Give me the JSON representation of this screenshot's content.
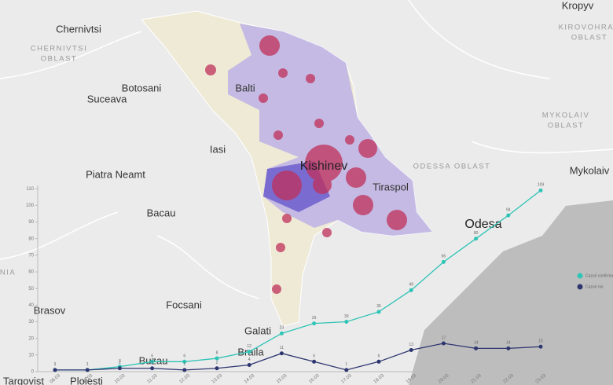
{
  "map": {
    "labels": [
      {
        "lines": [
          "Kropyv"
        ],
        "kind": "city"
      },
      {
        "lines": [
          "KIROVOHRAD",
          "OBLAST"
        ],
        "kind": "region"
      },
      {
        "lines": [
          "Chernivtsi"
        ],
        "kind": "city"
      },
      {
        "lines": [
          "CHERNIVTSI",
          "OBLAST"
        ],
        "kind": "region"
      },
      {
        "lines": [
          "Botosani"
        ],
        "kind": "city"
      },
      {
        "lines": [
          "Suceava"
        ],
        "kind": "city"
      },
      {
        "lines": [
          "Balti"
        ],
        "kind": "city"
      },
      {
        "lines": [
          "MYKOLAIV",
          "OBLAST"
        ],
        "kind": "region"
      },
      {
        "lines": [
          "Iasi"
        ],
        "kind": "city"
      },
      {
        "lines": [
          "Kishinev"
        ],
        "kind": "big"
      },
      {
        "lines": [
          "ODESSA OBLAST"
        ],
        "kind": "region"
      },
      {
        "lines": [
          "Mykolaiv"
        ],
        "kind": "city"
      },
      {
        "lines": [
          "Piatra Neamt"
        ],
        "kind": "city"
      },
      {
        "lines": [
          "Tiraspol"
        ],
        "kind": "city"
      },
      {
        "lines": [
          "Bacau"
        ],
        "kind": "city"
      },
      {
        "lines": [
          "Odesa"
        ],
        "kind": "big"
      },
      {
        "lines": [
          "NIA"
        ],
        "kind": "region"
      },
      {
        "lines": [
          "Focsani"
        ],
        "kind": "city"
      },
      {
        "lines": [
          "Brasov"
        ],
        "kind": "city"
      },
      {
        "lines": [
          "Galati"
        ],
        "kind": "city"
      },
      {
        "lines": [
          "Braila"
        ],
        "kind": "city"
      },
      {
        "lines": [
          "Buzau"
        ],
        "kind": "city"
      },
      {
        "lines": [
          "Targovist"
        ],
        "kind": "city"
      },
      {
        "lines": [
          "Ploiesti"
        ],
        "kind": "city"
      }
    ]
  },
  "chart_data": {
    "type": "line",
    "categories": [
      "08.03",
      "09.03",
      "10.03",
      "11.03",
      "12.03",
      "13.03",
      "14.03",
      "15.03",
      "16.03",
      "17.03",
      "18.03",
      "19.03",
      "20.03",
      "21.03",
      "22.03",
      "23.03"
    ],
    "series": [
      {
        "name": "Cazuri confirmate",
        "color": "#2ec4b6",
        "values": [
          1,
          1,
          3,
          6,
          6,
          8,
          12,
          23,
          29,
          30,
          36,
          49,
          66,
          80,
          94,
          109
        ]
      },
      {
        "name": "Cazuri noi",
        "color": "#2e3670",
        "values": [
          1,
          1,
          2,
          2,
          1,
          2,
          4,
          11,
          6,
          1,
          6,
          13,
          17,
          14,
          14,
          15
        ]
      }
    ],
    "ylim": [
      0,
      112
    ],
    "yticks": [
      0,
      10,
      20,
      30,
      40,
      50,
      60,
      70,
      80,
      90,
      100,
      110
    ],
    "legend": "right"
  }
}
